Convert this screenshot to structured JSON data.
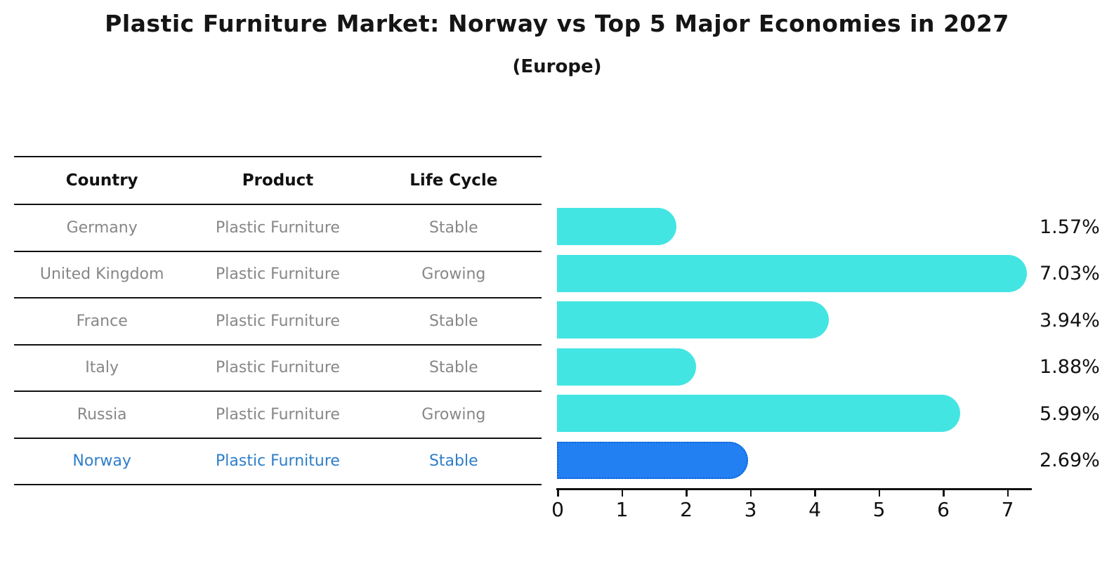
{
  "title": "Plastic Furniture Market: Norway vs Top 5 Major Economies in 2027",
  "subtitle": "(Europe)",
  "table": {
    "headers": [
      "Country",
      "Product",
      "Life Cycle"
    ],
    "rows": [
      {
        "country": "Germany",
        "product": "Plastic Furniture",
        "life_cycle": "Stable",
        "highlight": false
      },
      {
        "country": "United Kingdom",
        "product": "Plastic Furniture",
        "life_cycle": "Growing",
        "highlight": false
      },
      {
        "country": "France",
        "product": "Plastic Furniture",
        "life_cycle": "Stable",
        "highlight": false
      },
      {
        "country": "Italy",
        "product": "Plastic Furniture",
        "life_cycle": "Stable",
        "highlight": false
      },
      {
        "country": "Russia",
        "product": "Plastic Furniture",
        "life_cycle": "Growing",
        "highlight": false
      },
      {
        "country": "Norway",
        "product": "Plastic Furniture",
        "life_cycle": "Stable",
        "highlight": true
      }
    ]
  },
  "chart_data": {
    "type": "bar",
    "orientation": "horizontal",
    "title": "Plastic Furniture Market: Norway vs Top 5 Major Economies in 2027",
    "subtitle": "(Europe)",
    "categories": [
      "Germany",
      "United Kingdom",
      "France",
      "Italy",
      "Russia",
      "Norway"
    ],
    "values": [
      1.57,
      7.03,
      3.94,
      1.88,
      5.99,
      2.69
    ],
    "value_labels": [
      "1.57%",
      "7.03%",
      "3.94%",
      "1.88%",
      "5.99%",
      "2.69%"
    ],
    "x_ticks": [
      0,
      1,
      2,
      3,
      4,
      5,
      6,
      7
    ],
    "xlim": [
      0,
      7.4
    ],
    "grid": false,
    "legend": "none",
    "highlight_index": 5
  },
  "colors": {
    "bar": "#43e5e3",
    "highlight_bar": "#2280f2",
    "highlight_border": "#1263d6",
    "highlight_text": "#2e7ec9",
    "table_text": "#878787",
    "header_text": "#111111"
  }
}
